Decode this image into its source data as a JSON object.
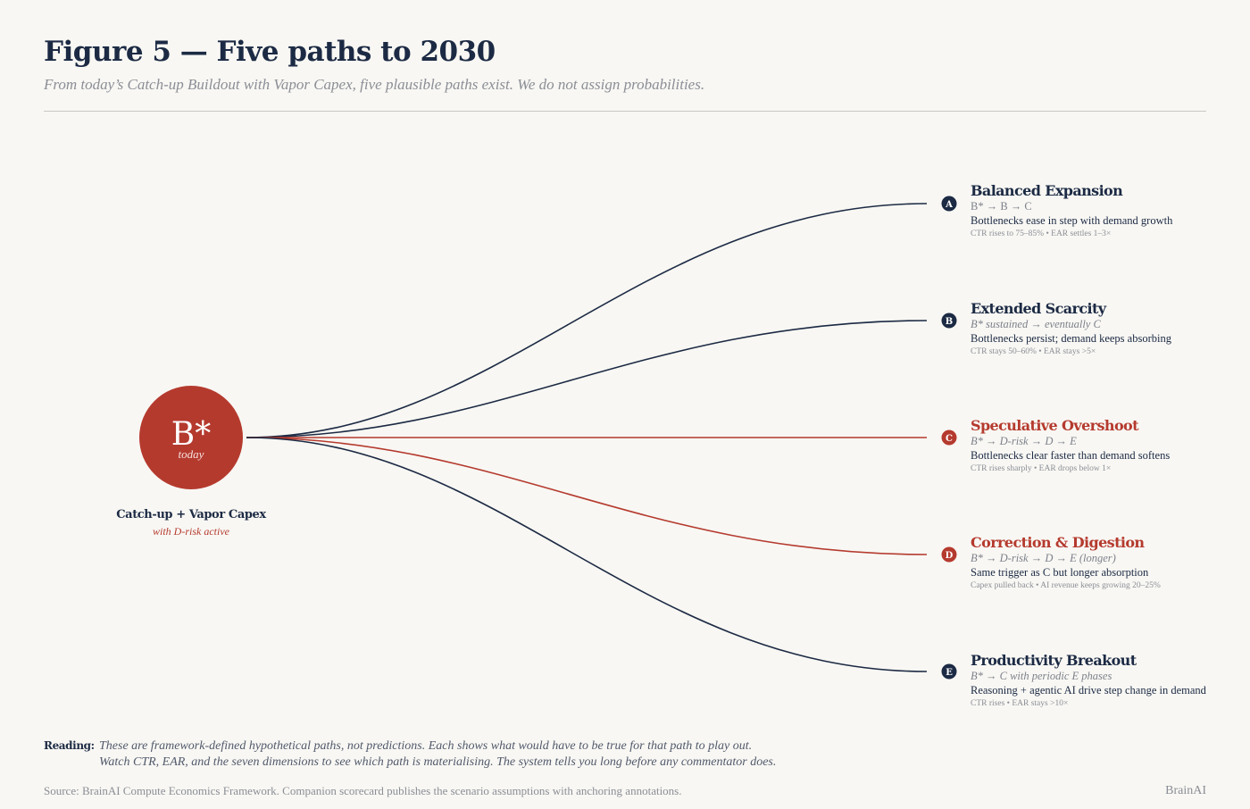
{
  "header": {
    "title": "Figure 5 — Five paths to 2030",
    "subtitle": "From today’s Catch-up Buildout with Vapor Capex, five plausible paths exist. We do not assign probabilities."
  },
  "origin": {
    "symbol": "B*",
    "label": "today",
    "name": "Catch-up + Vapor Capex",
    "sub": "with D-risk active"
  },
  "colors": {
    "navy": "#1c2a44",
    "red": "#b53a2e",
    "background": "#f8f7f3",
    "muted": "#8b8e96"
  },
  "scenarios": [
    {
      "letter": "A",
      "name": "Balanced Expansion",
      "path": "B* → B → C",
      "desc": "Bottlenecks ease in step with demand growth",
      "metrics": "CTR rises to 75–85%  •  EAR settles 1–3×",
      "color": "navy",
      "path_italic": false
    },
    {
      "letter": "B",
      "name": "Extended Scarcity",
      "path": "B* sustained → eventually C",
      "desc": "Bottlenecks persist; demand keeps absorbing",
      "metrics": "CTR stays 50–60%  •  EAR stays >5×",
      "color": "navy",
      "path_italic": true
    },
    {
      "letter": "C",
      "name": "Speculative Overshoot",
      "path": "B* → D-risk → D → E",
      "desc": "Bottlenecks clear faster than demand softens",
      "metrics": "CTR rises sharply  •  EAR drops below 1×",
      "color": "red",
      "path_italic": true
    },
    {
      "letter": "D",
      "name": "Correction & Digestion",
      "path": "B* → D-risk → D → E (longer)",
      "desc": "Same trigger as C but longer absorption",
      "metrics": "Capex pulled back  •  AI revenue keeps growing 20–25%",
      "color": "red",
      "path_italic": true
    },
    {
      "letter": "E",
      "name": "Productivity Breakout",
      "path": "B* → C with periodic E phases",
      "desc": "Reasoning + agentic AI drive step change in demand",
      "metrics": "CTR rises  •  EAR stays >10×",
      "color": "navy",
      "path_italic": true
    }
  ],
  "reading": {
    "label": "Reading:",
    "line1": "These are framework-defined hypothetical paths, not predictions. Each shows what would have to be true for that path to play out.",
    "line2": "Watch CTR, EAR, and the seven dimensions to see which path is materialising. The system tells you long before any commentator does."
  },
  "footer": {
    "source": "Source: BrainAI Compute Economics Framework. Companion scorecard publishes the scenario assumptions with anchoring annotations.",
    "brand": "BrainAI"
  }
}
